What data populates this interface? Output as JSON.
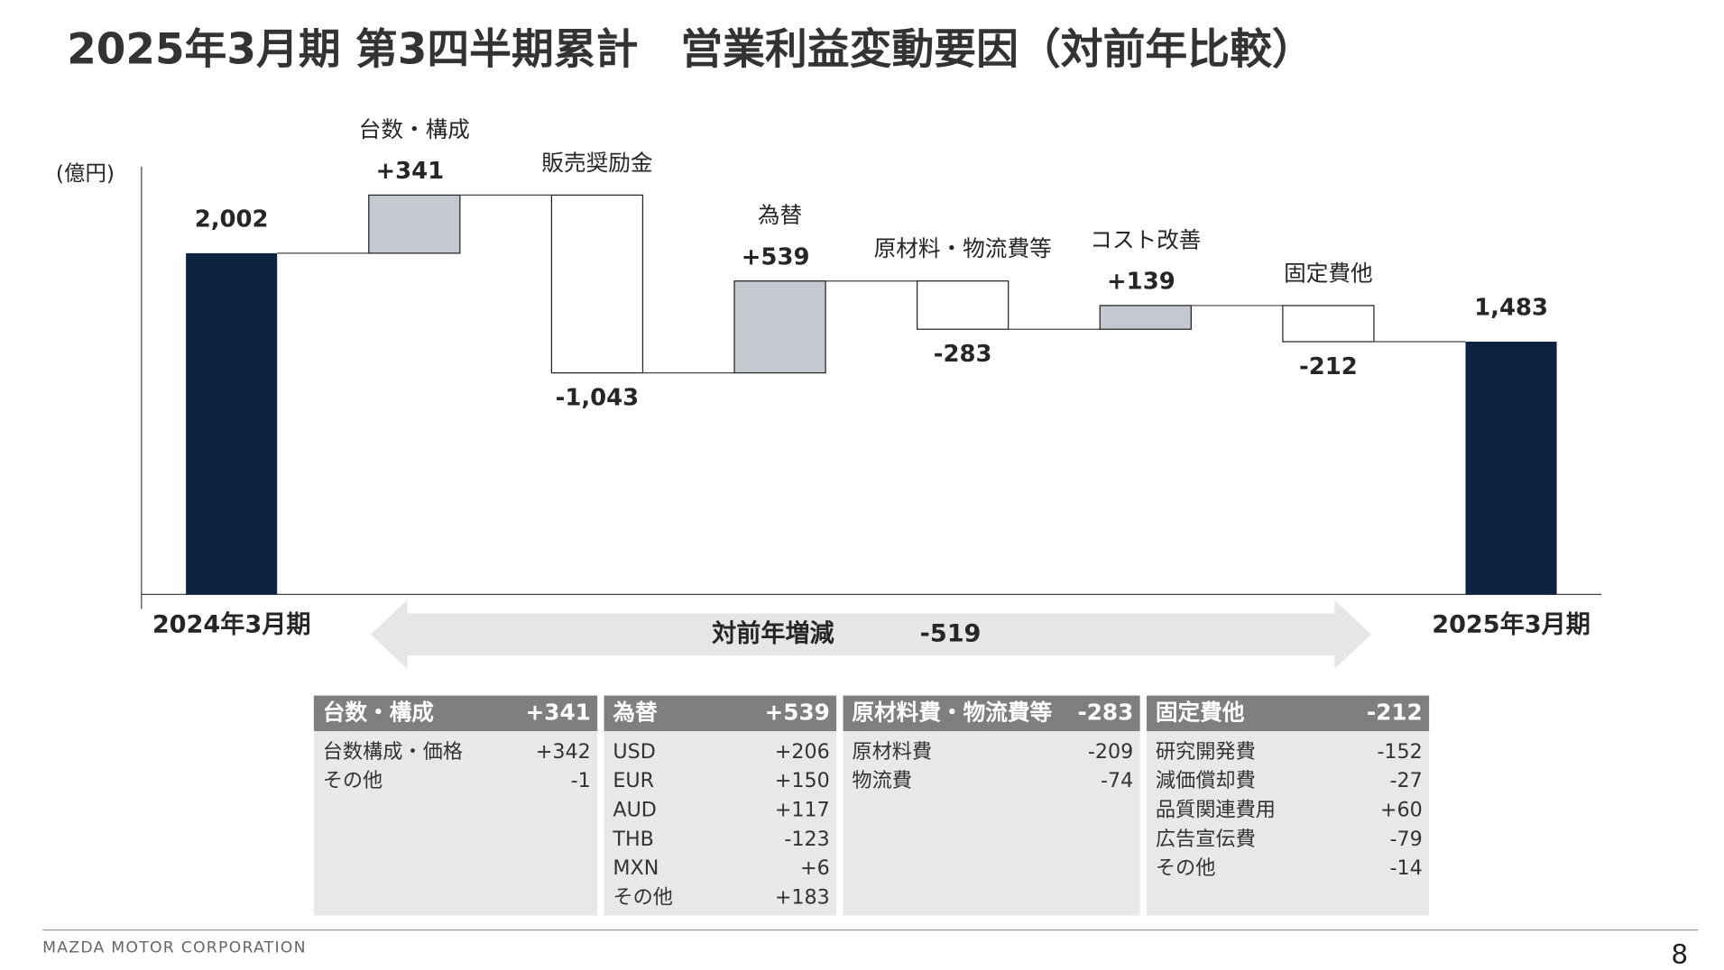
{
  "title": "2025年3月期 第3四半期累計　営業利益変動要因（対前年比較）",
  "chart_data": {
    "type": "waterfall",
    "unit": "(億円)",
    "categories": [
      "2024年3月期",
      "台数・構成",
      "販売奨励金",
      "為替",
      "原材料・物流費等",
      "コスト改善",
      "固定費他",
      "2025年3月期"
    ],
    "values": [
      2002,
      341,
      -1043,
      539,
      -283,
      139,
      -212,
      1483
    ],
    "value_labels": [
      "2,002",
      "+341",
      "-1,043",
      "+539",
      "-283",
      "+139",
      "-212",
      "1,483"
    ],
    "measure": [
      "absolute",
      "relative",
      "relative",
      "relative",
      "relative",
      "relative",
      "relative",
      "absolute"
    ],
    "colors": {
      "absolute": "#0b2340",
      "increase": "#c5c8ce",
      "decrease": "#ffffff"
    },
    "ylim": [
      0,
      2500
    ],
    "change_label": "対前年増減",
    "change": -519
  },
  "breakdown": [
    {
      "title": "台数・構成",
      "total": "+341",
      "rows": [
        [
          "台数構成・価格",
          "+342"
        ],
        [
          "その他",
          "-1"
        ]
      ]
    },
    {
      "title": "為替",
      "total": "+539",
      "rows": [
        [
          "USD",
          "+206"
        ],
        [
          "EUR",
          "+150"
        ],
        [
          "AUD",
          "+117"
        ],
        [
          "THB",
          "-123"
        ],
        [
          "MXN",
          "+6"
        ],
        [
          "その他",
          "+183"
        ]
      ]
    },
    {
      "title": "原材料費・物流費等",
      "total": "-283",
      "rows": [
        [
          "原材料費",
          "-209"
        ],
        [
          "物流費",
          "-74"
        ]
      ]
    },
    {
      "title": "固定費他",
      "total": "-212",
      "rows": [
        [
          "研究開発費",
          "-152"
        ],
        [
          "減価償却費",
          "-27"
        ],
        [
          "品質関連費用",
          "+60"
        ],
        [
          "広告宣伝費",
          "-79"
        ],
        [
          "その他",
          "-14"
        ]
      ]
    }
  ],
  "footer": "MAZDA MOTOR CORPORATION",
  "page": "8"
}
